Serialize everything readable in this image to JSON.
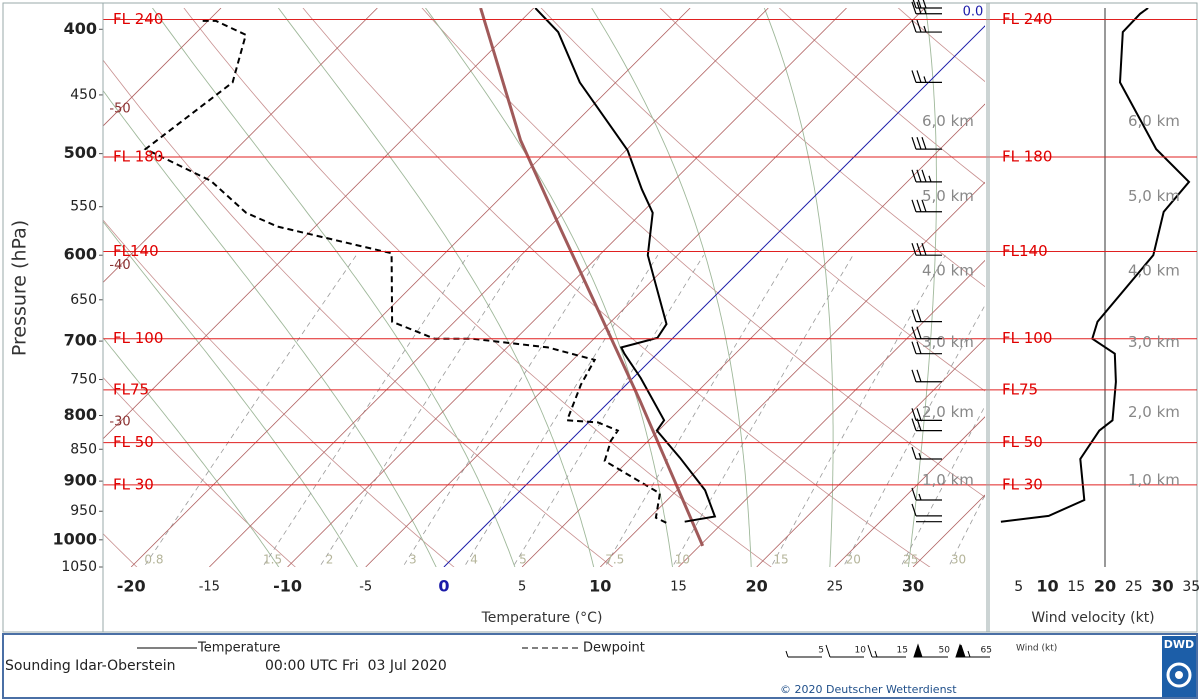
{
  "chart_data": {
    "type": "skewt",
    "ylabel": "Pressure (hPa)",
    "xlabel": "Temperature (°C)",
    "ylim": [
      1050,
      385
    ],
    "yticks": [
      400,
      450,
      500,
      550,
      600,
      650,
      700,
      750,
      800,
      850,
      900,
      950,
      1000,
      1050
    ],
    "log_y": true,
    "xlim": [
      -21.8,
      34.6
    ],
    "xticks": [
      -20,
      -15,
      -10,
      -5,
      0,
      5,
      10,
      15,
      20,
      25,
      30
    ],
    "series": [
      {
        "name": "Temperature",
        "color": "#000000",
        "dash": "none",
        "pressure": [
          968,
          959,
          915,
          863,
          822,
          807,
          748,
          716,
          708,
          696,
          679,
          600,
          556,
          533,
          497,
          440,
          402,
          385
        ],
        "values": [
          12.5,
          14.1,
          11.8,
          8.1,
          4.9,
          4.7,
          0.5,
          -2.1,
          -2.7,
          -1.0,
          -1.3,
          -6.9,
          -9.3,
          -11.5,
          -14.9,
          -22.3,
          -26.9,
          -29.9
        ]
      },
      {
        "name": "Dewpoint",
        "color": "#000000",
        "dash": "6 4",
        "pressure": [
          970,
          961,
          920,
          868,
          837,
          822,
          810,
          807,
          757,
          724,
          708,
          697,
          697,
          676,
          598,
          570,
          556,
          525,
          496,
          440,
          404,
          394,
          394
        ],
        "values": [
          11.4,
          10.4,
          9.1,
          3.5,
          2.6,
          2.4,
          0.6,
          -1.5,
          -2.9,
          -3.6,
          -7.4,
          -12.8,
          -15.2,
          -19.0,
          -23.4,
          -32.4,
          -35.3,
          -39.6,
          -45.8,
          -44.5,
          -46.7,
          -49.5,
          -50.4
        ]
      }
    ],
    "parcel": {
      "color": "#a05a5a",
      "pressure": [
        1011,
        779,
        573,
        488,
        385
      ],
      "values": [
        15.2,
        1.9,
        -14.1,
        -22.4,
        -33.4
      ]
    },
    "isotherm_labels": [
      -50,
      -40,
      -30,
      {
        "value": 0,
        "label": "0.0"
      }
    ],
    "mixing_ratios": [
      0.8,
      1.5,
      2,
      3,
      4,
      5,
      7.5,
      10,
      15,
      20,
      25,
      30
    ],
    "flight_levels": [
      {
        "pressure": 393,
        "label": "FL 240"
      },
      {
        "pressure": 503,
        "label": "FL 180"
      },
      {
        "pressure": 596,
        "label": "FL140"
      },
      {
        "pressure": 697,
        "label": "FL 100"
      },
      {
        "pressure": 764,
        "label": "FL75"
      },
      {
        "pressure": 840,
        "label": "FL 50"
      },
      {
        "pressure": 906,
        "label": "FL 30"
      }
    ],
    "heights": [
      {
        "pressure": 899,
        "label": "1,0 km"
      },
      {
        "pressure": 796,
        "label": "2,0 km"
      },
      {
        "pressure": 702,
        "label": "3,0 km"
      },
      {
        "pressure": 617,
        "label": "4,0 km"
      },
      {
        "pressure": 540,
        "label": "5,0 km"
      },
      {
        "pressure": 472,
        "label": "6,0 km"
      }
    ],
    "wind": {
      "xlabel": "Wind velocity (kt)",
      "xlim": [
        0,
        36
      ],
      "xticks": [
        5,
        10,
        15,
        20,
        25,
        30,
        35
      ],
      "reference": 20,
      "color": "#000000",
      "pressure": [
        968,
        958,
        931,
        865,
        822,
        807,
        753,
        716,
        697,
        676,
        600,
        555,
        526,
        496,
        440,
        402,
        389,
        385
      ],
      "values": [
        1.9,
        10.2,
        16.4,
        15.7,
        19.0,
        21.3,
        21.9,
        21.7,
        17.8,
        18.7,
        28.4,
        30.2,
        34.6,
        28.9,
        22.6,
        23.1,
        26.1,
        27.5
      ]
    },
    "wind_legend": {
      "label": "Wind (kt)",
      "values": [
        5,
        10,
        15,
        50,
        65
      ]
    },
    "station": "Sounding Idar-Oberstein",
    "time": "00:00 UTC Fri  03 Jul 2020",
    "copyright": "© 2020 Deutscher Wetterdienst",
    "logo": "DWD"
  }
}
